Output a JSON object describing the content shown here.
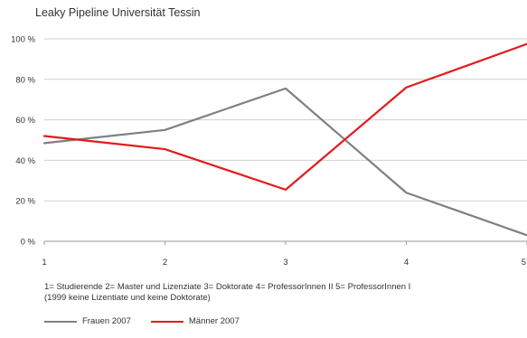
{
  "chart_data": {
    "type": "line",
    "title": "Leaky Pipeline Universität Tessin",
    "x": [
      1,
      2,
      3,
      4,
      5
    ],
    "x_tick_labels": [
      "1",
      "2",
      "3",
      "4",
      "5"
    ],
    "y_tick_labels": [
      "0 %",
      "20 %",
      "40 %",
      "60 %",
      "80 %",
      "100 %"
    ],
    "ylim": [
      0,
      100
    ],
    "grid": true,
    "legend_position": "bottom-left",
    "series": [
      {
        "name": "Frauen 2007",
        "color": "#808080",
        "values": [
          48.5,
          55,
          75.5,
          24,
          3
        ]
      },
      {
        "name": "Männer 2007",
        "color": "#e31a1c",
        "values": [
          52,
          45.5,
          25.5,
          76,
          97.5
        ]
      }
    ],
    "note_lines": [
      "1= Studierende  2= Master und Lizenziate  3= Doktorate  4= ProfessorInnen II  5= ProfessorInnen I",
      "(1999 keine Lizentiate und keine Doktorate)"
    ]
  }
}
